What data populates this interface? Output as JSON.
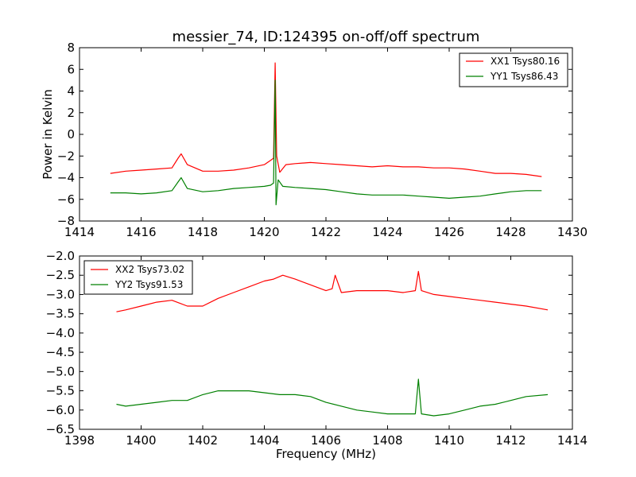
{
  "chart_data": [
    {
      "type": "line",
      "title": "messier_74, ID:124395 on-off/off spectrum",
      "xlabel": "",
      "ylabel": "Power in Kelvin",
      "xlim": [
        1414,
        1430
      ],
      "ylim": [
        -8,
        8
      ],
      "xticks": [
        "1414",
        "1416",
        "1418",
        "1420",
        "1422",
        "1424",
        "1426",
        "1428",
        "1430"
      ],
      "yticks": [
        "−8",
        "−6",
        "−4",
        "−2",
        "0",
        "2",
        "4",
        "6",
        "8"
      ],
      "grid": false,
      "legend_position": "top-right",
      "series": [
        {
          "name": "XX1 Tsys80.16",
          "color": "#ff0000",
          "x": [
            1415.0,
            1415.5,
            1416.0,
            1416.5,
            1417.0,
            1417.2,
            1417.3,
            1417.5,
            1418.0,
            1418.5,
            1419.0,
            1419.5,
            1420.0,
            1420.2,
            1420.3,
            1420.35,
            1420.4,
            1420.5,
            1420.7,
            1421.0,
            1421.5,
            1422.0,
            1422.5,
            1423.0,
            1423.5,
            1424.0,
            1424.5,
            1425.0,
            1425.5,
            1426.0,
            1426.5,
            1427.0,
            1427.5,
            1428.0,
            1428.5,
            1429.0
          ],
          "y": [
            -3.6,
            -3.4,
            -3.3,
            -3.2,
            -3.1,
            -2.2,
            -1.8,
            -2.8,
            -3.4,
            -3.4,
            -3.3,
            -3.1,
            -2.8,
            -2.4,
            -2.2,
            6.6,
            -2.0,
            -3.5,
            -2.8,
            -2.7,
            -2.6,
            -2.7,
            -2.8,
            -2.9,
            -3.0,
            -2.9,
            -3.0,
            -3.0,
            -3.1,
            -3.1,
            -3.2,
            -3.4,
            -3.6,
            -3.6,
            -3.7,
            -3.9
          ]
        },
        {
          "name": "YY1 Tsys86.43",
          "color": "#008000",
          "x": [
            1415.0,
            1415.5,
            1416.0,
            1416.5,
            1417.0,
            1417.2,
            1417.3,
            1417.5,
            1418.0,
            1418.5,
            1419.0,
            1419.5,
            1420.0,
            1420.2,
            1420.3,
            1420.35,
            1420.38,
            1420.45,
            1420.6,
            1421.0,
            1421.5,
            1422.0,
            1422.5,
            1423.0,
            1423.5,
            1424.0,
            1424.5,
            1425.0,
            1425.5,
            1426.0,
            1426.5,
            1427.0,
            1427.5,
            1428.0,
            1428.5,
            1429.0
          ],
          "y": [
            -5.4,
            -5.4,
            -5.5,
            -5.4,
            -5.2,
            -4.4,
            -4.0,
            -5.0,
            -5.3,
            -5.2,
            -5.0,
            -4.9,
            -4.8,
            -4.7,
            -4.5,
            5.0,
            -6.5,
            -4.2,
            -4.8,
            -4.9,
            -5.0,
            -5.1,
            -5.3,
            -5.5,
            -5.6,
            -5.6,
            -5.6,
            -5.7,
            -5.8,
            -5.9,
            -5.8,
            -5.7,
            -5.5,
            -5.3,
            -5.2,
            -5.2
          ]
        }
      ]
    },
    {
      "type": "line",
      "title": "",
      "xlabel": "Frequency (MHz)",
      "ylabel": "",
      "xlim": [
        1398,
        1414
      ],
      "ylim": [
        -6.5,
        -2.0
      ],
      "xticks": [
        "1398",
        "1400",
        "1402",
        "1404",
        "1406",
        "1408",
        "1410",
        "1412",
        "1414"
      ],
      "yticks": [
        "−6.5",
        "−6.0",
        "−5.5",
        "−5.0",
        "−4.5",
        "−4.0",
        "−3.5",
        "−3.0",
        "−2.5",
        "−2.0"
      ],
      "grid": false,
      "legend_position": "top-left",
      "series": [
        {
          "name": "XX2 Tsys73.02",
          "color": "#ff0000",
          "x": [
            1399.2,
            1399.5,
            1400.0,
            1400.5,
            1401.0,
            1401.5,
            1402.0,
            1402.5,
            1403.0,
            1403.5,
            1404.0,
            1404.3,
            1404.6,
            1405.0,
            1405.5,
            1406.0,
            1406.2,
            1406.3,
            1406.5,
            1407.0,
            1407.5,
            1408.0,
            1408.5,
            1408.9,
            1409.0,
            1409.1,
            1409.5,
            1410.0,
            1410.5,
            1411.0,
            1411.5,
            1412.0,
            1412.5,
            1413.2
          ],
          "y": [
            -3.45,
            -3.4,
            -3.3,
            -3.2,
            -3.15,
            -3.3,
            -3.3,
            -3.1,
            -2.95,
            -2.8,
            -2.65,
            -2.6,
            -2.5,
            -2.6,
            -2.75,
            -2.9,
            -2.85,
            -2.5,
            -2.95,
            -2.9,
            -2.9,
            -2.9,
            -2.95,
            -2.9,
            -2.4,
            -2.9,
            -3.0,
            -3.05,
            -3.1,
            -3.15,
            -3.2,
            -3.25,
            -3.3,
            -3.4
          ]
        },
        {
          "name": "YY2 Tsys91.53",
          "color": "#008000",
          "x": [
            1399.2,
            1399.5,
            1400.0,
            1400.5,
            1401.0,
            1401.5,
            1402.0,
            1402.5,
            1403.0,
            1403.5,
            1404.0,
            1404.5,
            1405.0,
            1405.5,
            1406.0,
            1406.5,
            1407.0,
            1407.5,
            1408.0,
            1408.5,
            1408.9,
            1409.0,
            1409.1,
            1409.5,
            1410.0,
            1410.5,
            1411.0,
            1411.5,
            1412.0,
            1412.5,
            1413.2
          ],
          "y": [
            -5.85,
            -5.9,
            -5.85,
            -5.8,
            -5.75,
            -5.75,
            -5.6,
            -5.5,
            -5.5,
            -5.5,
            -5.55,
            -5.6,
            -5.6,
            -5.65,
            -5.8,
            -5.9,
            -6.0,
            -6.05,
            -6.1,
            -6.1,
            -6.1,
            -5.2,
            -6.1,
            -6.15,
            -6.1,
            -6.0,
            -5.9,
            -5.85,
            -5.75,
            -5.65,
            -5.6
          ]
        }
      ]
    }
  ]
}
